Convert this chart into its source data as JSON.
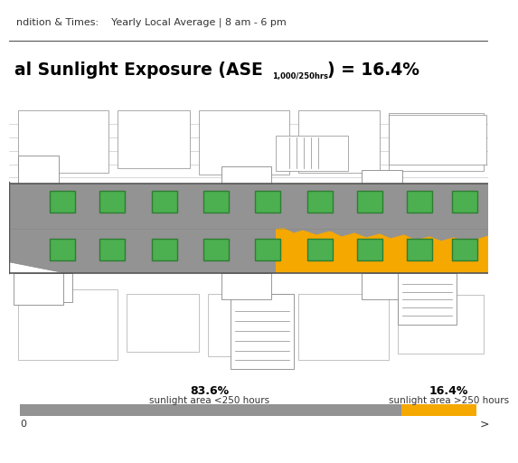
{
  "condition_text": "ndition & Times:    Yearly Local Average | 8 am - 6 pm",
  "title_bold": "al Sunlight Exposure (ASE",
  "title_sub": "1,000/250hrs",
  "title_end": ") = 16.4%",
  "gray_pct": 83.6,
  "orange_pct": 16.4,
  "gray_label_pct": "83.6%",
  "orange_label_pct": "16.4%",
  "gray_label_text": "sunlight area <250 hours",
  "orange_label_text": "sunlight area >250 hours",
  "gray_color": "#939393",
  "orange_color": "#F5A800",
  "green_fill": "#4CAF50",
  "green_edge": "#2E7D32",
  "bar_left_label": "0",
  "bar_right_label": ">",
  "background_color": "#ffffff",
  "fig_width": 5.3,
  "fig_height": 4.93,
  "line_color": "#444444",
  "floor_plan_bg": "#ffffff",
  "wall_color": "#555555"
}
